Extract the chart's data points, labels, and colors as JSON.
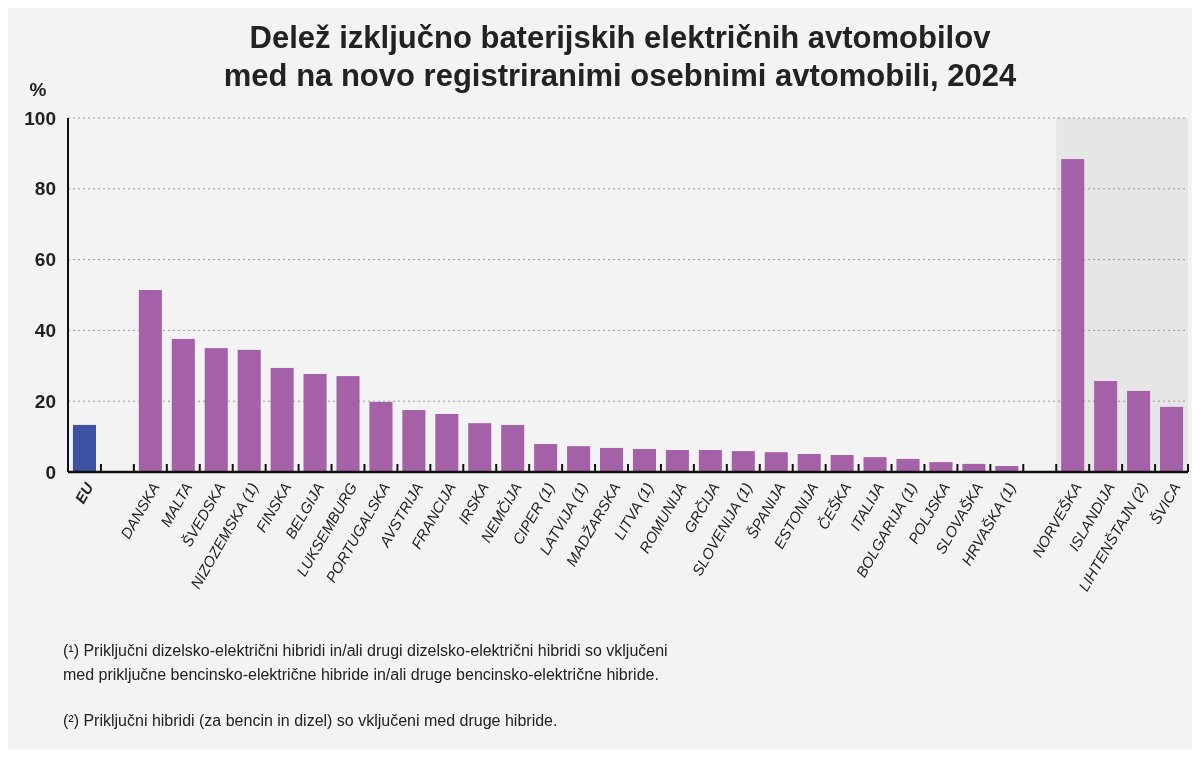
{
  "chart_data": {
    "type": "bar",
    "title": "Delež izključno baterijskih električnih avtomobilov\nmed na novo registriranimi osebnimi avtomobili, 2024",
    "ylabel": "%",
    "categories": [
      "EU",
      null,
      "DANSKA",
      "MALTA",
      "ŠVEDSKA",
      "NIZOZEMSKA (1)",
      "FINSKA",
      "BELGIJA",
      "LUKSEMBURG",
      "PORTUGALSKA",
      "AVSTRIJA",
      "FRANCIJA",
      "IRSKA",
      "NEMČIJA",
      "CIPER (1)",
      "LATVIJA (1)",
      "MADŽARSKA",
      "LITVA (1)",
      "ROMUNIJA",
      "GRČIJA",
      "SLOVENIJA (1)",
      "ŠPANIJA",
      "ESTONIJA",
      "ČEŠKA",
      "ITALIJA",
      "BOLGARIJA (1)",
      "POLJSKA",
      "SLOVAŠKA",
      "HRVAŠKA (1)",
      null,
      "NORVEŠKA",
      "ISLANDIJA",
      "LIHTENŠTAJN (2)",
      "ŠVICA"
    ],
    "values": [
      13.3,
      null,
      51.4,
      37.6,
      35.0,
      34.5,
      29.4,
      27.7,
      27.1,
      19.8,
      17.5,
      16.4,
      13.8,
      13.3,
      7.9,
      7.3,
      6.8,
      6.5,
      6.2,
      6.2,
      5.9,
      5.6,
      5.1,
      4.8,
      4.2,
      3.7,
      2.8,
      2.3,
      1.7,
      null,
      88.4,
      25.7,
      22.9,
      18.4
    ],
    "colors": [
      "#3f51a3",
      null,
      "#a561a8",
      "#a561a8",
      "#a561a8",
      "#a561a8",
      "#a561a8",
      "#a561a8",
      "#a561a8",
      "#a561a8",
      "#a561a8",
      "#a561a8",
      "#a561a8",
      "#a561a8",
      "#a561a8",
      "#a561a8",
      "#a561a8",
      "#a561a8",
      "#a561a8",
      "#a561a8",
      "#a561a8",
      "#a561a8",
      "#a561a8",
      "#a561a8",
      "#a561a8",
      "#a561a8",
      "#a561a8",
      "#a561a8",
      "#a561a8",
      null,
      "#a561a8",
      "#a561a8",
      "#a561a8",
      "#a561a8"
    ],
    "ylim": [
      0,
      100
    ],
    "yticks": [
      0,
      20,
      40,
      60,
      80,
      100
    ],
    "grid": "y",
    "bands": [
      {
        "axis": "x",
        "from": "NORVEŠKA",
        "to": "ŠVICA",
        "color": "#e6e6e6"
      }
    ],
    "annotations": [
      "(¹) Priključni dizelsko-električni hibridi in/ali drugi dizelsko-električni hibridi so vključeni\nmed priključne bencinsko-električne hibride in/ali druge bencinsko-električne hibride.",
      "(²) Priključni hibridi (za bencin in dizel) so vključeni med druge hibride."
    ]
  }
}
